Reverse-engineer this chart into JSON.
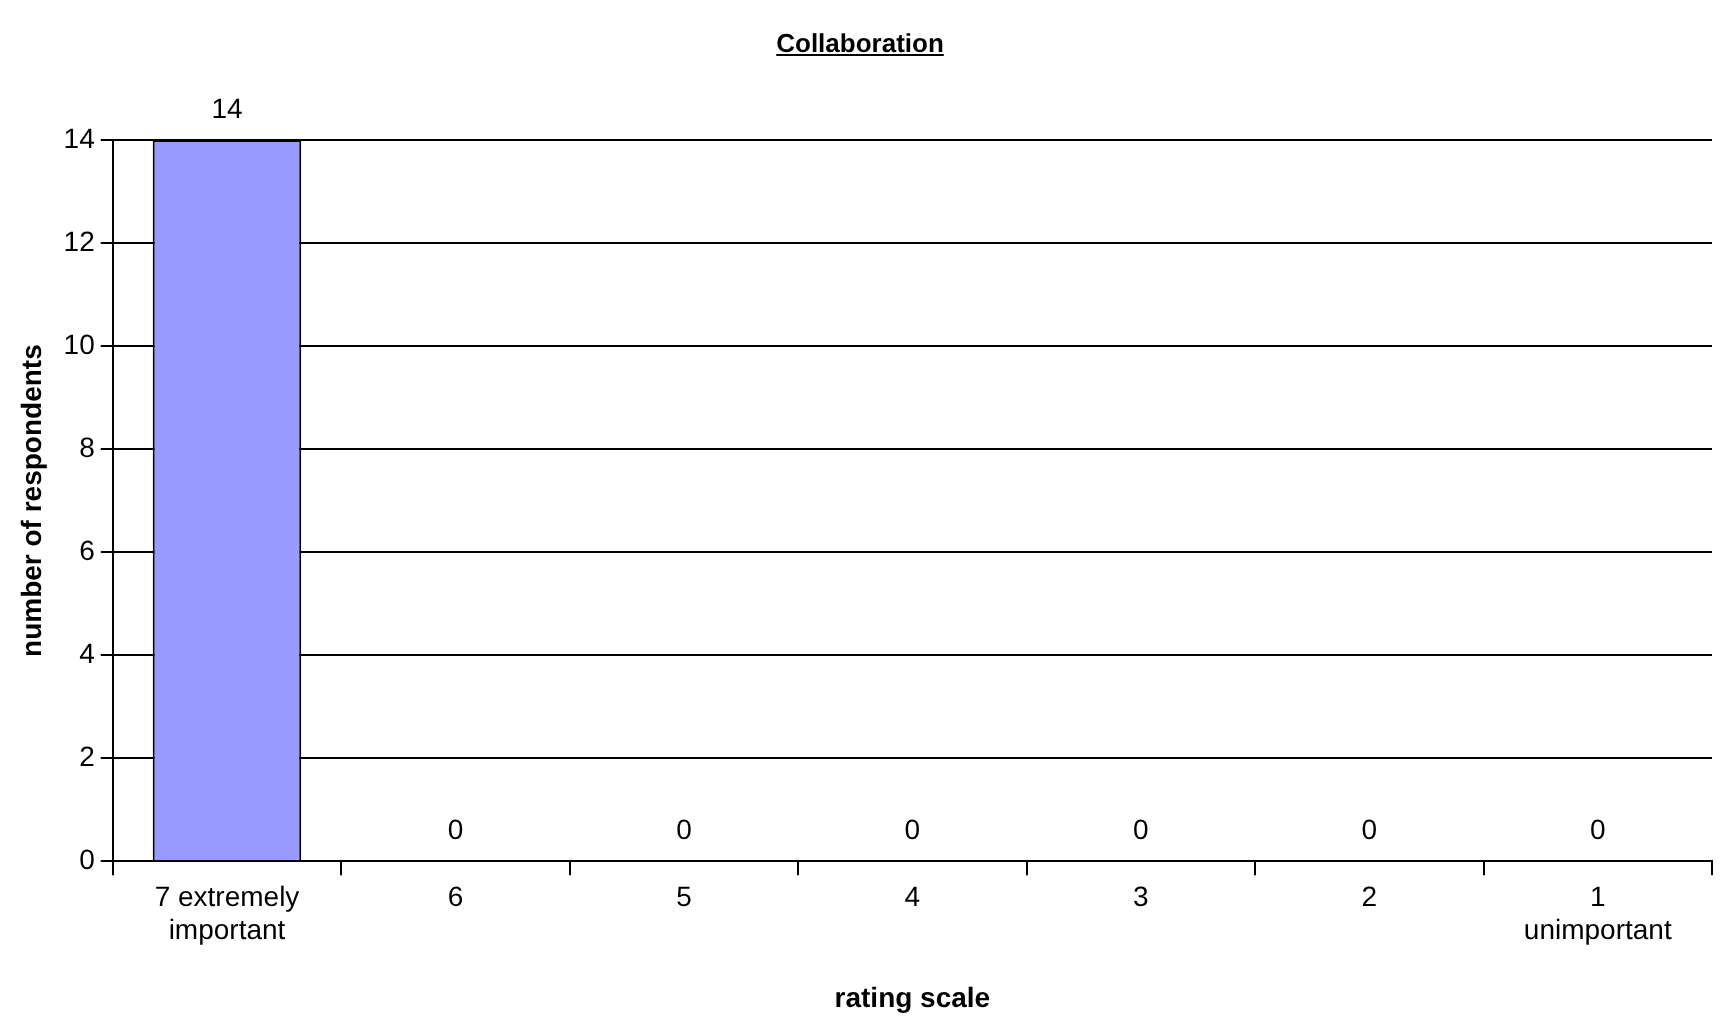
{
  "chart_data": {
    "type": "bar",
    "title": "Collaboration",
    "xlabel": "rating scale",
    "ylabel": "number of respondents",
    "categories": [
      "7 extremely\nimportant",
      "6",
      "5",
      "4",
      "3",
      "2",
      "1\nunimportant"
    ],
    "values": [
      14,
      0,
      0,
      0,
      0,
      0,
      0
    ],
    "color": "#9999ff",
    "ylim": [
      0,
      14
    ],
    "yticks": [
      0,
      2,
      4,
      6,
      8,
      10,
      12,
      14
    ],
    "grid": "y",
    "data_labels": true
  }
}
